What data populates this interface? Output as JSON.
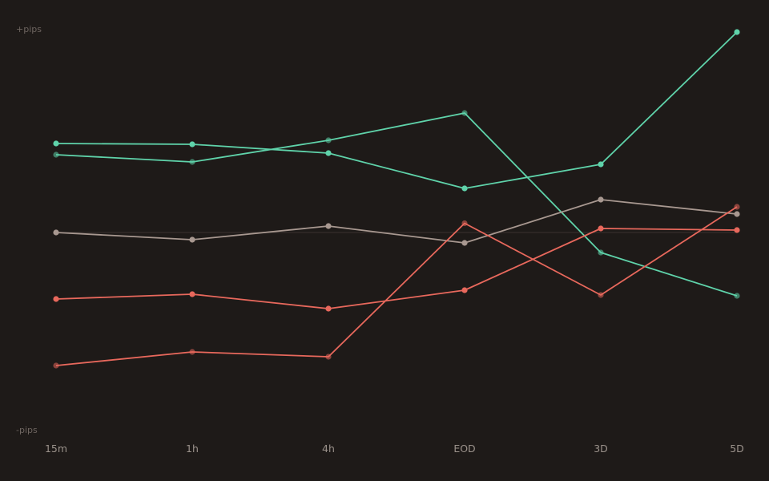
{
  "chart_data": {
    "type": "line",
    "title": "",
    "xlabel": "",
    "ylabel": "",
    "y_top_label": "+pips",
    "y_bottom_label": "-pips",
    "categories": [
      "15m",
      "1h",
      "4h",
      "EOD",
      "3D",
      "5D"
    ],
    "ylim": [
      -100,
      100
    ],
    "zero_line": true,
    "grid": false,
    "legend": "none",
    "series": [
      {
        "color": "#5fd3aa",
        "dim": false,
        "values": [
          44.4,
          44.0,
          39.6,
          22.0,
          34.0,
          100.0
        ]
      },
      {
        "color": "#5fd3aa",
        "dim": true,
        "values": [
          38.8,
          35.2,
          46.0,
          59.6,
          -10.0,
          -31.6
        ]
      },
      {
        "color": "#a89890",
        "dim": false,
        "values": [
          0.0,
          -3.6,
          3.2,
          -5.2,
          16.4,
          9.2
        ]
      },
      {
        "color": "#e8685c",
        "dim": false,
        "values": [
          -33.2,
          -30.8,
          -38.0,
          -28.8,
          2.0,
          1.2
        ]
      },
      {
        "color": "#e8685c",
        "dim": true,
        "values": [
          -66.4,
          -59.6,
          -62.0,
          4.6,
          -31.2,
          12.8
        ]
      }
    ]
  }
}
